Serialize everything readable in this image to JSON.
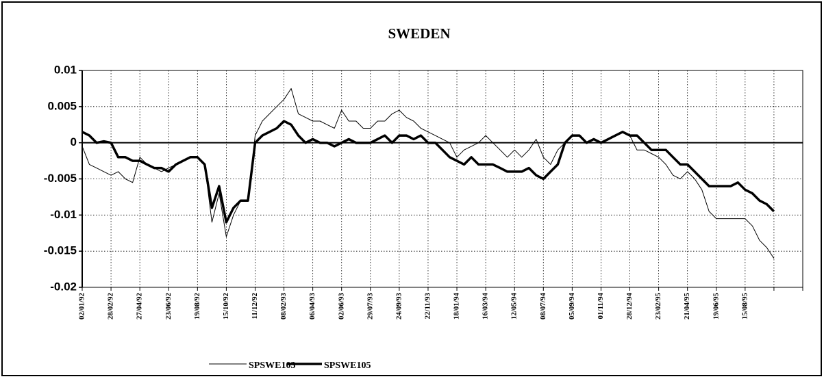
{
  "chart_data": {
    "type": "line",
    "title": "SWEDEN",
    "categories": [
      "02/01/92",
      null,
      null,
      null,
      "28/02/92",
      null,
      null,
      null,
      "27/04/92",
      null,
      null,
      null,
      "23/06/92",
      null,
      null,
      null,
      "19/08/92",
      null,
      null,
      null,
      "15/10/92",
      null,
      null,
      null,
      "11/12/92",
      null,
      null,
      null,
      "08/02/93",
      null,
      null,
      null,
      "06/04/93",
      null,
      null,
      null,
      "02/06/93",
      null,
      null,
      null,
      "29/07/93",
      null,
      null,
      null,
      "24/09/93",
      null,
      null,
      null,
      "22/11/93",
      null,
      null,
      null,
      "18/01/94",
      null,
      null,
      null,
      "16/03/94",
      null,
      null,
      null,
      "12/05/94",
      null,
      null,
      null,
      "08/07/94",
      null,
      null,
      null,
      "05/09/94",
      null,
      null,
      null,
      "01/11/94",
      null,
      null,
      null,
      "28/12/94",
      null,
      null,
      null,
      "23/02/95",
      null,
      null,
      null,
      "21/04/95",
      null,
      null,
      null,
      "19/06/95",
      null,
      null,
      null,
      "15/08/95",
      null,
      null,
      null,
      null,
      null,
      null,
      null,
      null
    ],
    "series": [
      {
        "name": "SPSWE103",
        "color": "#000000",
        "line_width": 1,
        "values": [
          -0.0005,
          -0.003,
          -0.0035,
          -0.004,
          -0.0045,
          -0.004,
          -0.005,
          -0.0055,
          -0.002,
          -0.003,
          -0.0035,
          -0.004,
          -0.0035,
          -0.003,
          -0.0025,
          -0.002,
          -0.002,
          -0.003,
          -0.011,
          -0.007,
          -0.013,
          -0.01,
          -0.008,
          -0.008,
          0.001,
          0.003,
          0.004,
          0.005,
          0.006,
          0.0075,
          0.004,
          0.0035,
          0.003,
          0.003,
          0.0025,
          0.002,
          0.0045,
          0.003,
          0.003,
          0.002,
          0.002,
          0.003,
          0.003,
          0.004,
          0.0045,
          0.0035,
          0.003,
          0.002,
          0.0015,
          0.001,
          0.0005,
          0,
          -0.002,
          -0.001,
          -0.0005,
          0,
          0.001,
          0,
          -0.001,
          -0.002,
          -0.001,
          -0.002,
          -0.001,
          0.0005,
          -0.002,
          -0.003,
          -0.001,
          0,
          0.001,
          0.001,
          0,
          0,
          0,
          0.0005,
          0.001,
          0.0015,
          0.001,
          -0.001,
          -0.001,
          -0.0015,
          -0.002,
          -0.003,
          -0.0045,
          -0.005,
          -0.004,
          -0.005,
          -0.0065,
          -0.0095,
          -0.0105,
          -0.0105,
          -0.0105,
          -0.0105,
          -0.0105,
          -0.0115,
          -0.0135,
          -0.0145,
          -0.016,
          null,
          null,
          null,
          null
        ]
      },
      {
        "name": "SPSWE105",
        "color": "#000000",
        "line_width": 3.5,
        "values": [
          0.0015,
          0.001,
          0,
          0.0002,
          0,
          -0.002,
          -0.002,
          -0.0025,
          -0.0025,
          -0.003,
          -0.0035,
          -0.0035,
          -0.004,
          -0.003,
          -0.0025,
          -0.002,
          -0.002,
          -0.003,
          -0.009,
          -0.006,
          -0.011,
          -0.009,
          -0.008,
          -0.008,
          0,
          0.001,
          0.0015,
          0.002,
          0.003,
          0.0025,
          0.001,
          0,
          0.0005,
          0,
          0,
          -0.0005,
          0,
          0.0005,
          0,
          0,
          0,
          0.0005,
          0.001,
          0,
          0.001,
          0.001,
          0.0005,
          0.001,
          0,
          0,
          -0.001,
          -0.002,
          -0.0025,
          -0.003,
          -0.002,
          -0.003,
          -0.003,
          -0.003,
          -0.0035,
          -0.004,
          -0.004,
          -0.004,
          -0.0035,
          -0.0045,
          -0.005,
          -0.004,
          -0.003,
          0,
          0.001,
          0.001,
          0,
          0.0005,
          0,
          0.0005,
          0.001,
          0.0015,
          0.001,
          0.001,
          0,
          -0.001,
          -0.001,
          -0.001,
          -0.002,
          -0.003,
          -0.003,
          -0.004,
          -0.005,
          -0.006,
          -0.006,
          -0.006,
          -0.006,
          -0.0055,
          -0.0065,
          -0.007,
          -0.008,
          -0.0085,
          -0.0095,
          null,
          null,
          null,
          null
        ]
      }
    ],
    "ylim": [
      -0.02,
      0.01
    ],
    "yticks": [
      -0.02,
      -0.015,
      -0.01,
      -0.005,
      0,
      0.005,
      0.01
    ],
    "grid": true
  }
}
